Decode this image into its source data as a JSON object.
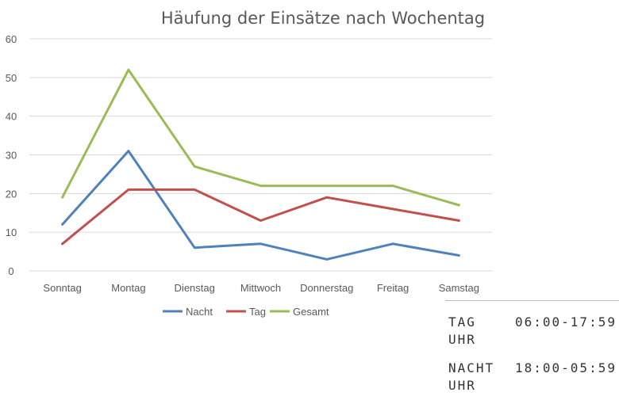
{
  "chart_data": {
    "type": "line",
    "title": "Häufung der Einsätze nach Wochentag",
    "categories": [
      "Sonntag",
      "Montag",
      "Dienstag",
      "Mittwoch",
      "Donnerstag",
      "Freitag",
      "Samstag"
    ],
    "series": [
      {
        "name": "Nacht",
        "color": "#4f81bd",
        "values": [
          12,
          31,
          6,
          7,
          3,
          7,
          4
        ]
      },
      {
        "name": "Tag",
        "color": "#c0504d",
        "values": [
          7,
          21,
          21,
          13,
          19,
          16,
          13
        ]
      },
      {
        "name": "Gesamt",
        "color": "#9bbb59",
        "values": [
          19,
          52,
          27,
          22,
          22,
          22,
          17
        ]
      }
    ],
    "ylim": [
      0,
      60
    ],
    "yticks": [
      0,
      10,
      20,
      30,
      40,
      50,
      60
    ],
    "grid": true,
    "legend": "bottom"
  },
  "shifts": [
    {
      "label": "TAG",
      "time": "06:00-17:59",
      "unit": "UHR"
    },
    {
      "label": "NACHT",
      "time": "18:00-05:59",
      "unit": "UHR"
    }
  ]
}
